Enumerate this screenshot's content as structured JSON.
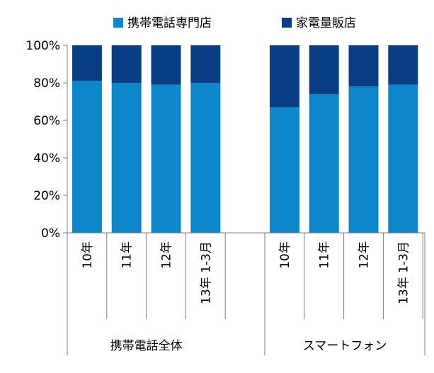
{
  "chart_data": {
    "type": "bar",
    "stacked": true,
    "groups": [
      {
        "label": "携帯電話全体",
        "categories": [
          "10年",
          "11年",
          "12年",
          "13年 1-3月"
        ],
        "series_values": {
          "携帯電話専門店": [
            81,
            80,
            79,
            80
          ],
          "家電量販店": [
            19,
            20,
            21,
            20
          ]
        }
      },
      {
        "label": "スマートフォン",
        "categories": [
          "10年",
          "11年",
          "12年",
          "13年 1-3月"
        ],
        "series_values": {
          "携帯電話専門店": [
            67,
            74,
            78,
            79
          ],
          "家電量販店": [
            33,
            26,
            22,
            21
          ]
        }
      }
    ],
    "series": [
      {
        "name": "携帯電話専門店",
        "color": "#0D87C9"
      },
      {
        "name": "家電量販店",
        "color": "#0A3E84"
      }
    ],
    "yticks": [
      "0%",
      "20%",
      "40%",
      "60%",
      "80%",
      "100%"
    ],
    "ylim": [
      0,
      100
    ],
    "legend_position": "top",
    "grid": false
  }
}
